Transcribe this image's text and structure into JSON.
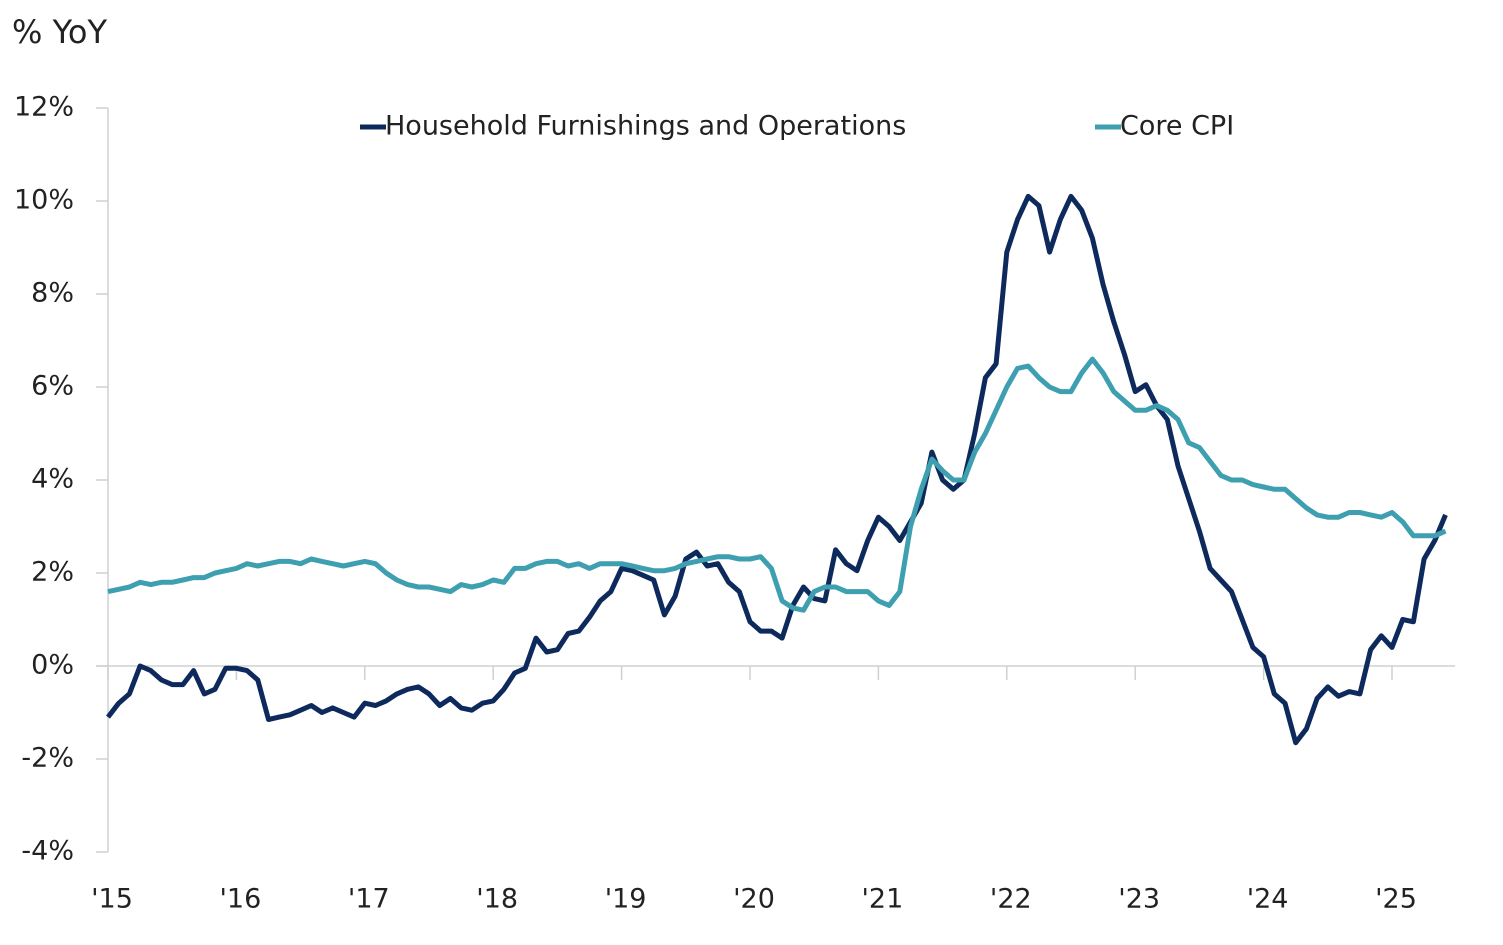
{
  "chart_data": {
    "type": "line",
    "title": "% YoY",
    "categories": [
      "'15",
      null,
      null,
      null,
      null,
      null,
      null,
      null,
      null,
      null,
      null,
      null,
      "'16",
      null,
      null,
      null,
      null,
      null,
      null,
      null,
      null,
      null,
      null,
      null,
      "'17",
      null,
      null,
      null,
      null,
      null,
      null,
      null,
      null,
      null,
      null,
      null,
      "'18",
      null,
      null,
      null,
      null,
      null,
      null,
      null,
      null,
      null,
      null,
      null,
      "'19",
      null,
      null,
      null,
      null,
      null,
      null,
      null,
      null,
      null,
      null,
      null,
      "'20",
      null,
      null,
      null,
      null,
      null,
      null,
      null,
      null,
      null,
      null,
      null,
      "'21",
      null,
      null,
      null,
      null,
      null,
      null,
      null,
      null,
      null,
      null,
      null,
      "'22",
      null,
      null,
      null,
      null,
      null,
      null,
      null,
      null,
      null,
      null,
      null,
      "'23",
      null,
      null,
      null,
      null,
      null,
      null,
      null,
      null,
      null,
      null,
      null,
      "'24",
      null,
      null,
      null,
      null,
      null,
      null,
      null,
      null,
      null,
      null,
      null,
      "'25",
      null,
      null,
      null,
      null,
      null
    ],
    "series": [
      {
        "name": "Household Furnishings and Operations",
        "color": "#0e2a5c",
        "values": [
          -1.1,
          -0.8,
          -0.6,
          0.0,
          -0.1,
          -0.3,
          -0.4,
          -0.4,
          -0.1,
          -0.6,
          -0.5,
          -0.05,
          -0.05,
          -0.1,
          -0.3,
          -1.15,
          -1.1,
          -1.05,
          -0.95,
          -0.85,
          -1.0,
          -0.9,
          -1.0,
          -1.1,
          -0.8,
          -0.85,
          -0.75,
          -0.6,
          -0.5,
          -0.45,
          -0.6,
          -0.85,
          -0.7,
          -0.9,
          -0.95,
          -0.8,
          -0.75,
          -0.5,
          -0.15,
          -0.05,
          0.6,
          0.3,
          0.35,
          0.7,
          0.75,
          1.05,
          1.4,
          1.6,
          2.1,
          2.05,
          1.95,
          1.85,
          1.1,
          1.5,
          2.3,
          2.45,
          2.15,
          2.2,
          1.8,
          1.6,
          0.95,
          0.75,
          0.75,
          0.6,
          1.3,
          1.7,
          1.45,
          1.4,
          2.5,
          2.2,
          2.05,
          2.7,
          3.2,
          3.0,
          2.7,
          3.1,
          3.5,
          4.6,
          4.0,
          3.8,
          4.0,
          5.0,
          6.2,
          6.5,
          8.9,
          9.6,
          10.1,
          9.9,
          8.9,
          9.6,
          10.1,
          9.8,
          9.2,
          8.2,
          7.4,
          6.7,
          5.9,
          6.05,
          5.6,
          5.3,
          4.3,
          3.6,
          2.9,
          2.1,
          1.85,
          1.6,
          1.0,
          0.4,
          0.2,
          -0.6,
          -0.8,
          -1.65,
          -1.35,
          -0.7,
          -0.45,
          -0.65,
          -0.55,
          -0.6,
          0.35,
          0.65,
          0.4,
          1.0,
          0.95,
          2.3,
          2.7,
          3.25
        ]
      },
      {
        "name": "Core CPI",
        "color": "#3d9fb0",
        "values": [
          1.6,
          1.65,
          1.7,
          1.8,
          1.75,
          1.8,
          1.8,
          1.85,
          1.9,
          1.9,
          2.0,
          2.05,
          2.1,
          2.2,
          2.15,
          2.2,
          2.25,
          2.25,
          2.2,
          2.3,
          2.25,
          2.2,
          2.15,
          2.2,
          2.25,
          2.2,
          2.0,
          1.85,
          1.75,
          1.7,
          1.7,
          1.65,
          1.6,
          1.75,
          1.7,
          1.75,
          1.85,
          1.8,
          2.1,
          2.1,
          2.2,
          2.25,
          2.25,
          2.15,
          2.2,
          2.1,
          2.2,
          2.2,
          2.2,
          2.15,
          2.1,
          2.05,
          2.05,
          2.1,
          2.2,
          2.25,
          2.3,
          2.35,
          2.35,
          2.3,
          2.3,
          2.35,
          2.1,
          1.4,
          1.25,
          1.2,
          1.6,
          1.7,
          1.7,
          1.6,
          1.6,
          1.6,
          1.4,
          1.3,
          1.6,
          3.0,
          3.8,
          4.45,
          4.2,
          4.0,
          4.0,
          4.6,
          5.0,
          5.5,
          6.0,
          6.4,
          6.45,
          6.2,
          6.0,
          5.9,
          5.9,
          6.3,
          6.6,
          6.3,
          5.9,
          5.7,
          5.5,
          5.5,
          5.6,
          5.5,
          5.3,
          4.8,
          4.7,
          4.4,
          4.1,
          4.0,
          4.0,
          3.9,
          3.85,
          3.8,
          3.8,
          3.6,
          3.4,
          3.25,
          3.2,
          3.2,
          3.3,
          3.3,
          3.25,
          3.2,
          3.3,
          3.1,
          2.8,
          2.8,
          2.8,
          2.9
        ]
      }
    ],
    "ylim": [
      -4,
      12
    ],
    "yticks": [
      {
        "value": -4,
        "label": "-4%"
      },
      {
        "value": -2,
        "label": "-2%"
      },
      {
        "value": 0,
        "label": "0%"
      },
      {
        "value": 2,
        "label": "2%"
      },
      {
        "value": 4,
        "label": "4%"
      },
      {
        "value": 6,
        "label": "6%"
      },
      {
        "value": 8,
        "label": "8%"
      },
      {
        "value": 10,
        "label": "10%"
      },
      {
        "value": 12,
        "label": "12%"
      }
    ]
  }
}
